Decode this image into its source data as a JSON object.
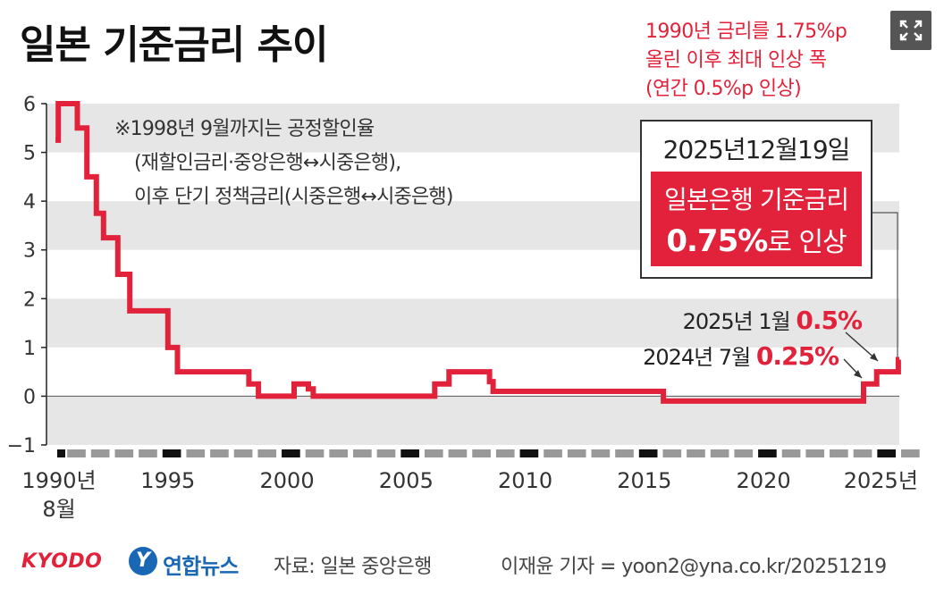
{
  "title": "일본 기준금리 추이",
  "annotation": {
    "line1": "※1998년 9월까지는 공정할인율",
    "line2": "(재할인금리·중앙은행↔시중은행),",
    "line3": "이후 단기 정책금리(시중은행↔시중은행)"
  },
  "red_note": {
    "line1": "1990년 금리를 1.75%p",
    "line2": "올린 이후 최대 인상 폭",
    "line3": "(연간 0.5%p 인상)"
  },
  "highlight_box": {
    "date": "2025년12월19일",
    "line1": "일본은행 기준금리",
    "rate": "0.75%",
    "suffix": "로 인상"
  },
  "notes": [
    {
      "label": "2025년 1월 ",
      "value": "0.5%"
    },
    {
      "label": "2024년 7월 ",
      "value": "0.25%"
    }
  ],
  "footer": {
    "kyodo": "KYODO",
    "yonhap_mark": "Y",
    "yonhap": "연합뉴스",
    "source": "자료: 일본 중앙은행",
    "credit": "이재윤 기자 = yoon2@yna.co.kr/20251219"
  },
  "colors": {
    "line": "#e2223b",
    "band": "#e6e6e6",
    "axis": "#222222",
    "tick_dark": "#111111",
    "tick_light": "#999999"
  },
  "chart_data": {
    "type": "line",
    "step": true,
    "ylim": [
      -1,
      6
    ],
    "xlim": [
      1990.58,
      2026.0
    ],
    "yticks": [
      6,
      5,
      4,
      3,
      2,
      1,
      0,
      -1
    ],
    "ytick_labels": [
      "6",
      "5",
      "4",
      "3",
      "2",
      "1",
      "0",
      "−1"
    ],
    "xticks": [
      {
        "x": 1990.58,
        "label": "1990년",
        "sub": "8월"
      },
      {
        "x": 1995,
        "label": "1995"
      },
      {
        "x": 2000,
        "label": "2000"
      },
      {
        "x": 2005,
        "label": "2005"
      },
      {
        "x": 2010,
        "label": "2010"
      },
      {
        "x": 2015,
        "label": "2015"
      },
      {
        "x": 2020,
        "label": "2020"
      },
      {
        "x": 2025,
        "label": "2025년"
      }
    ],
    "x": [
      1990.58,
      1990.7,
      1991.5,
      1991.9,
      1992.3,
      1992.6,
      1993.2,
      1993.7,
      1995.3,
      1995.7,
      1998.7,
      1999.1,
      2000.6,
      2001.2,
      2001.4,
      2006.5,
      2007.1,
      2008.8,
      2008.95,
      2010.8,
      2016.1,
      2024.5,
      2024.8,
      2025.05,
      2025.96
    ],
    "values": [
      5.25,
      6.0,
      5.5,
      4.5,
      3.75,
      3.25,
      2.5,
      1.75,
      1.0,
      0.5,
      0.25,
      0.0,
      0.25,
      0.15,
      0.0,
      0.25,
      0.5,
      0.3,
      0.1,
      0.1,
      -0.1,
      0.25,
      0.25,
      0.5,
      0.75
    ]
  }
}
